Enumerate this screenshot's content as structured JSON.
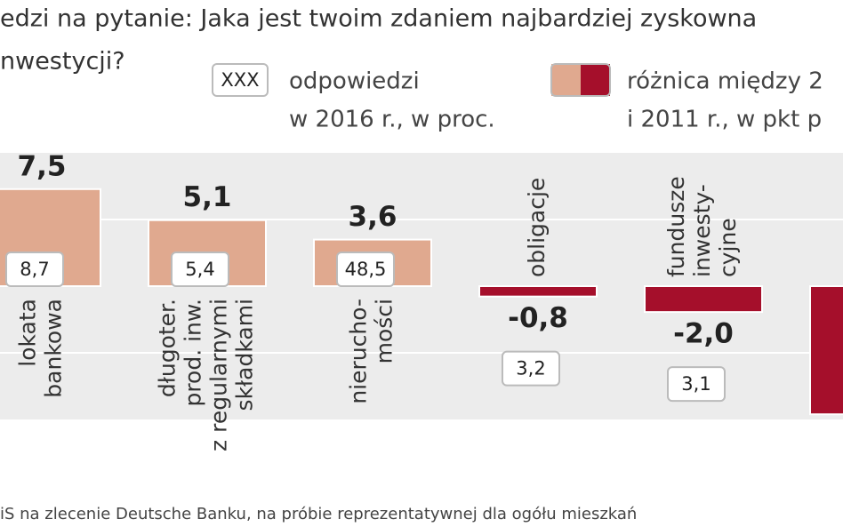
{
  "chart_data": {
    "type": "bar",
    "title_lines": [
      "edzi na pytanie: Jaka jest twoim zdaniem najbardziej zyskowna",
      "nwestycji?"
    ],
    "legend": {
      "answers_sample": "XXX",
      "answers_text": [
        "odpowiedzi",
        "w 2016 r., w proc."
      ],
      "difference_text": [
        "różnica między 2",
        "i 2011 r., w pkt p"
      ]
    },
    "categories": [
      [
        "lokata",
        "bankowa"
      ],
      [
        "długoter.",
        "prod. inw.",
        "z regularnymi",
        "składkami"
      ],
      [
        "nierucho-",
        "mości"
      ],
      [
        "obligacje"
      ],
      [
        "fundusze",
        "inwesty-",
        "cyjne"
      ],
      null
    ],
    "series": [
      {
        "name": "difference",
        "values": [
          7.5,
          5.1,
          3.6,
          -0.8,
          -2.0,
          -9.9
        ],
        "value_labels": [
          "7,5",
          "5,1",
          "3,6",
          "-0,8",
          "-2,0",
          null
        ]
      },
      {
        "name": "answers",
        "values": [
          8.7,
          5.4,
          48.5,
          3.2,
          3.1,
          null
        ],
        "value_labels": [
          "8,7",
          "5,4",
          "48,5",
          "3,2",
          "3,1",
          null
        ]
      }
    ],
    "colors": {
      "positive": "#e0a98f",
      "negative": "#a50f2b"
    },
    "ylim": [
      -10.3,
      10.3
    ],
    "source": "iS na zlecenie Deutsche Banku, na próbie reprezentatywnej dla ogółu mieszkań"
  }
}
